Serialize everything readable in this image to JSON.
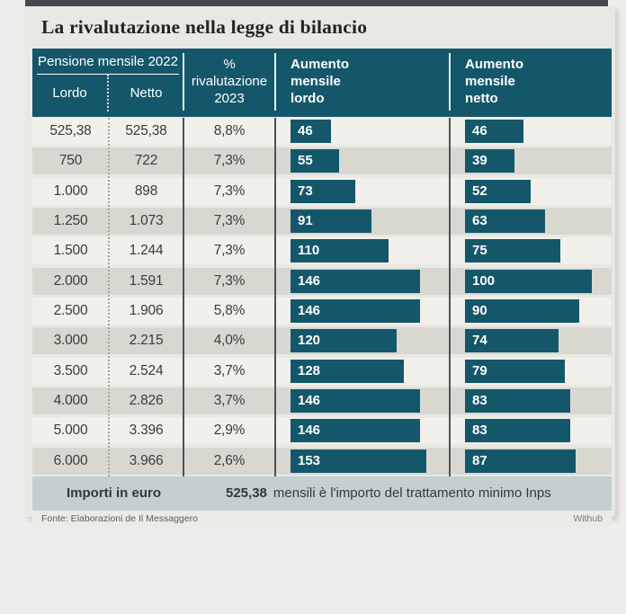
{
  "title": "La rivalutazione nella legge di bilancio",
  "colors": {
    "teal": "#14576b",
    "row-light": "#f1f0eb",
    "row-dark": "#d9d8d0",
    "card-bg": "#e9e8e3",
    "page-bg": "#efeeec",
    "footer-band": "#c3cfd0",
    "source-bar": "#ecebe7",
    "divider-dark": "#49545a",
    "divider-dotted": "#a6a69e",
    "text-dark": "#3b3b3b",
    "title-color": "#232323",
    "top-strip": "#46494b"
  },
  "header": {
    "group_label": "Pensione mensile 2022",
    "lordo_label": "Lordo",
    "netto_label": "Netto",
    "perc_label": "%\nrivalutazione\n2023",
    "aum_lordo_label": "Aumento\nmensile\nlordo",
    "aum_netto_label": "Aumento\nmensile\nnetto"
  },
  "chart_data": {
    "type": "bar",
    "title": "La rivalutazione nella legge di bilancio",
    "columns": [
      "Pensione mensile 2022 - Lordo",
      "Pensione mensile 2022 - Netto",
      "% rivalutazione 2023",
      "Aumento mensile lordo",
      "Aumento mensile netto"
    ],
    "bar_scale": {
      "lordo_max": 153,
      "netto_max": 100
    },
    "rows": [
      {
        "lordo": "525,38",
        "netto": "525,38",
        "perc": "8,8%",
        "aum_lordo": 46,
        "aum_netto": 46
      },
      {
        "lordo": "750",
        "netto": "722",
        "perc": "7,3%",
        "aum_lordo": 55,
        "aum_netto": 39
      },
      {
        "lordo": "1.000",
        "netto": "898",
        "perc": "7,3%",
        "aum_lordo": 73,
        "aum_netto": 52
      },
      {
        "lordo": "1.250",
        "netto": "1.073",
        "perc": "7,3%",
        "aum_lordo": 91,
        "aum_netto": 63
      },
      {
        "lordo": "1.500",
        "netto": "1.244",
        "perc": "7,3%",
        "aum_lordo": 110,
        "aum_netto": 75
      },
      {
        "lordo": "2.000",
        "netto": "1.591",
        "perc": "7,3%",
        "aum_lordo": 146,
        "aum_netto": 100
      },
      {
        "lordo": "2.500",
        "netto": "1.906",
        "perc": "5,8%",
        "aum_lordo": 146,
        "aum_netto": 90
      },
      {
        "lordo": "3.000",
        "netto": "2.215",
        "perc": "4,0%",
        "aum_lordo": 120,
        "aum_netto": 74
      },
      {
        "lordo": "3.500",
        "netto": "2.524",
        "perc": "3,7%",
        "aum_lordo": 128,
        "aum_netto": 79
      },
      {
        "lordo": "4.000",
        "netto": "2.826",
        "perc": "3,7%",
        "aum_lordo": 146,
        "aum_netto": 83
      },
      {
        "lordo": "5.000",
        "netto": "3.396",
        "perc": "2,9%",
        "aum_lordo": 146,
        "aum_netto": 83
      },
      {
        "lordo": "6.000",
        "netto": "3.966",
        "perc": "2,6%",
        "aum_lordo": 153,
        "aum_netto": 87
      }
    ]
  },
  "footer": {
    "label": "Importi in euro",
    "value": "525,38",
    "note": "mensili è l'importo del trattamento minimo Inps",
    "source": "Fonte: Elaborazioni de Il Messaggero",
    "credit": "Withub"
  }
}
